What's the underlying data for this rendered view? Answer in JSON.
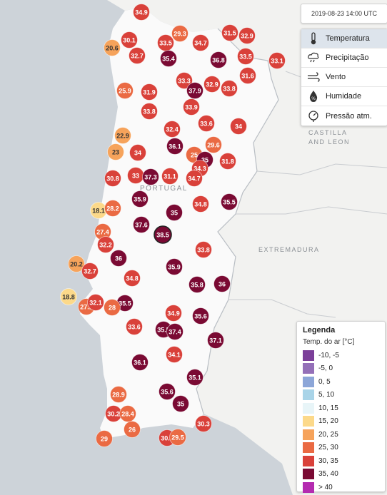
{
  "timestamp": "2019-08-23 14:00 UTC",
  "layers": [
    {
      "label": "Temperatura",
      "icon": "thermometer-icon",
      "active": true
    },
    {
      "label": "Precipitação",
      "icon": "rain-cloud-icon",
      "active": false
    },
    {
      "label": "Vento",
      "icon": "wind-icon",
      "active": false
    },
    {
      "label": "Humidade",
      "icon": "humidity-drop-icon",
      "active": false
    },
    {
      "label": "Pressão atm.",
      "icon": "pressure-gauge-icon",
      "active": false
    }
  ],
  "regions": {
    "castilla_line1": "CASTILLA",
    "castilla_line2": "AND LEON",
    "extremadura": "EXTREMADURA",
    "portugal": "PORTUGAL"
  },
  "legend": {
    "title": "Legenda",
    "subtitle": "Temp. do ar [°C]",
    "ranges": [
      {
        "label": "-10, -5",
        "color": "#7b3f99"
      },
      {
        "label": "-5, 0",
        "color": "#9470b8"
      },
      {
        "label": "0, 5",
        "color": "#8ca6d8"
      },
      {
        "label": "5, 10",
        "color": "#a9d4e8"
      },
      {
        "label": "10, 15",
        "color": "#e8f5f8"
      },
      {
        "label": "15, 20",
        "color": "#fcd98a"
      },
      {
        "label": "20, 25",
        "color": "#f6a35b"
      },
      {
        "label": "25, 30",
        "color": "#ea6a43"
      },
      {
        "label": "30, 35",
        "color": "#d9413a"
      },
      {
        "label": "35, 40",
        "color": "#7a0a33"
      },
      {
        "label": "> 40",
        "color": "#b42bb0"
      }
    ]
  },
  "stations": [
    {
      "label": "34.9",
      "value": 34.9
    },
    {
      "label": "29.3",
      "value": 29.3
    },
    {
      "label": "31.5",
      "value": 31.5
    },
    {
      "label": "32.9",
      "value": 32.9
    },
    {
      "label": "30.1",
      "value": 30.1
    },
    {
      "label": "20.6",
      "value": 20.6
    },
    {
      "label": "33.5",
      "value": 33.5
    },
    {
      "label": "34.7",
      "value": 34.7
    },
    {
      "label": "32.7",
      "value": 32.7
    },
    {
      "label": "35.4",
      "value": 35.4
    },
    {
      "label": "36.8",
      "value": 36.8
    },
    {
      "label": "33.5",
      "value": 33.5
    },
    {
      "label": "33.1",
      "value": 33.1
    },
    {
      "label": "25.9",
      "value": 25.9
    },
    {
      "label": "31.9",
      "value": 31.9
    },
    {
      "label": "33.3",
      "value": 33.3
    },
    {
      "label": "37.9",
      "value": 37.9
    },
    {
      "label": "32.9",
      "value": 32.9
    },
    {
      "label": "33.8",
      "value": 33.8
    },
    {
      "label": "31.6",
      "value": 31.6
    },
    {
      "label": "33.8",
      "value": 33.8
    },
    {
      "label": "33.9",
      "value": 33.9
    },
    {
      "label": "32.4",
      "value": 32.4
    },
    {
      "label": "33.6",
      "value": 33.6
    },
    {
      "label": "34",
      "value": 34
    },
    {
      "label": "22.9",
      "value": 22.9
    },
    {
      "label": "36.1",
      "value": 36.1
    },
    {
      "label": "29.6",
      "value": 29.6
    },
    {
      "label": "23",
      "value": 23
    },
    {
      "label": "34",
      "value": 34
    },
    {
      "label": "25",
      "value": 25
    },
    {
      "label": "35",
      "value": 35
    },
    {
      "label": "34.3",
      "value": 34.3
    },
    {
      "label": "31.8",
      "value": 31.8
    },
    {
      "label": "30.8",
      "value": 30.8
    },
    {
      "label": "33",
      "value": 33
    },
    {
      "label": "37.3",
      "value": 37.3
    },
    {
      "label": "31.1",
      "value": 31.1
    },
    {
      "label": "34.7",
      "value": 34.7
    },
    {
      "label": "35.9",
      "value": 35.9
    },
    {
      "label": "34.8",
      "value": 34.8
    },
    {
      "label": "35.5",
      "value": 35.5
    },
    {
      "label": "18.1",
      "value": 18.1
    },
    {
      "label": "28.2",
      "value": 28.2
    },
    {
      "label": "35",
      "value": 35
    },
    {
      "label": "37.6",
      "value": 37.6
    },
    {
      "label": "27.4",
      "value": 27.4
    },
    {
      "label": "38.5",
      "value": 38.5
    },
    {
      "label": "32.2",
      "value": 32.2
    },
    {
      "label": "33.8",
      "value": 33.8
    },
    {
      "label": "36",
      "value": 36
    },
    {
      "label": "20.2",
      "value": 20.2
    },
    {
      "label": "35.9",
      "value": 35.9
    },
    {
      "label": "32.7",
      "value": 32.7
    },
    {
      "label": "34.8",
      "value": 34.8
    },
    {
      "label": "35.8",
      "value": 35.8
    },
    {
      "label": "36",
      "value": 36
    },
    {
      "label": "18.8",
      "value": 18.8
    },
    {
      "label": "27.1",
      "value": 27.1
    },
    {
      "label": "32.1",
      "value": 32.1
    },
    {
      "label": "35.5",
      "value": 35.5
    },
    {
      "label": "28",
      "value": 28
    },
    {
      "label": "34.9",
      "value": 34.9
    },
    {
      "label": "35.6",
      "value": 35.6
    },
    {
      "label": "33.6",
      "value": 33.6
    },
    {
      "label": "35.5",
      "value": 35.5
    },
    {
      "label": "37.4",
      "value": 37.4
    },
    {
      "label": "37.1",
      "value": 37.1
    },
    {
      "label": "34.1",
      "value": 34.1
    },
    {
      "label": "36.1",
      "value": 36.1
    },
    {
      "label": "35.1",
      "value": 35.1
    },
    {
      "label": "28.9",
      "value": 28.9
    },
    {
      "label": "35.6",
      "value": 35.6
    },
    {
      "label": "35",
      "value": 35
    },
    {
      "label": "30.2",
      "value": 30.2
    },
    {
      "label": "28.4",
      "value": 28.4
    },
    {
      "label": "26",
      "value": 26
    },
    {
      "label": "30.3",
      "value": 30.3
    },
    {
      "label": "29",
      "value": 29
    },
    {
      "label": "30.4",
      "value": 30.4
    },
    {
      "label": "29.5",
      "value": 29.5
    }
  ]
}
